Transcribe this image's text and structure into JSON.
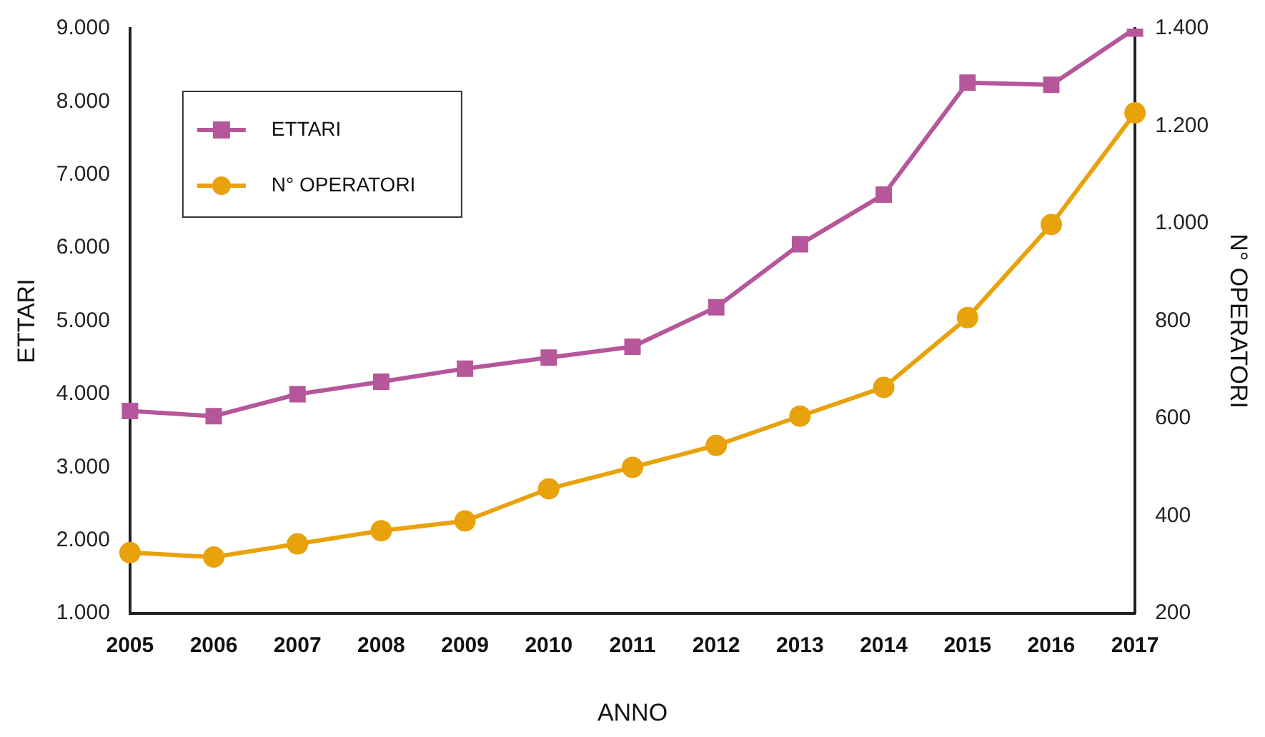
{
  "chart_data": {
    "type": "line",
    "xlabel": "ANNO",
    "ylabel": "ETTARI",
    "y2label": "N° OPERATORI",
    "categories": [
      "2005",
      "2006",
      "2007",
      "2008",
      "2009",
      "2010",
      "2011",
      "2012",
      "2013",
      "2014",
      "2015",
      "2016",
      "2017"
    ],
    "series": [
      {
        "name": "ETTARI",
        "color": "#b5579a",
        "marker": "square",
        "values": [
          3770,
          3700,
          4000,
          4170,
          4350,
          4500,
          4650,
          5190,
          6050,
          6730,
          8260,
          8230,
          9000
        ]
      },
      {
        "name": "N° OPERATORI",
        "color": "#e8a20c",
        "marker": "circle",
        "axis": "y2",
        "values": [
          325,
          316,
          343,
          370,
          390,
          456,
          500,
          545,
          605,
          664,
          807,
          998,
          1227
        ]
      }
    ],
    "ylim": [
      1000,
      9000
    ],
    "yticks": [
      {
        "value": 1000,
        "label": "1.000"
      },
      {
        "value": 2000,
        "label": "2.000"
      },
      {
        "value": 3000,
        "label": "3.000"
      },
      {
        "value": 4000,
        "label": "4.000"
      },
      {
        "value": 5000,
        "label": "5.000"
      },
      {
        "value": 6000,
        "label": "6.000"
      },
      {
        "value": 7000,
        "label": "7.000"
      },
      {
        "value": 8000,
        "label": "8.000"
      },
      {
        "value": 9000,
        "label": "9.000"
      }
    ],
    "y2lim": [
      200,
      1400
    ],
    "y2ticks": [
      200,
      400,
      600,
      800,
      {
        "value": 1000,
        "label": "1.000"
      },
      {
        "value": 1200,
        "label": "1.200"
      },
      {
        "value": 1400,
        "label": "1.400"
      }
    ],
    "grid": false,
    "legend": "top left",
    "line_style": "solid"
  }
}
